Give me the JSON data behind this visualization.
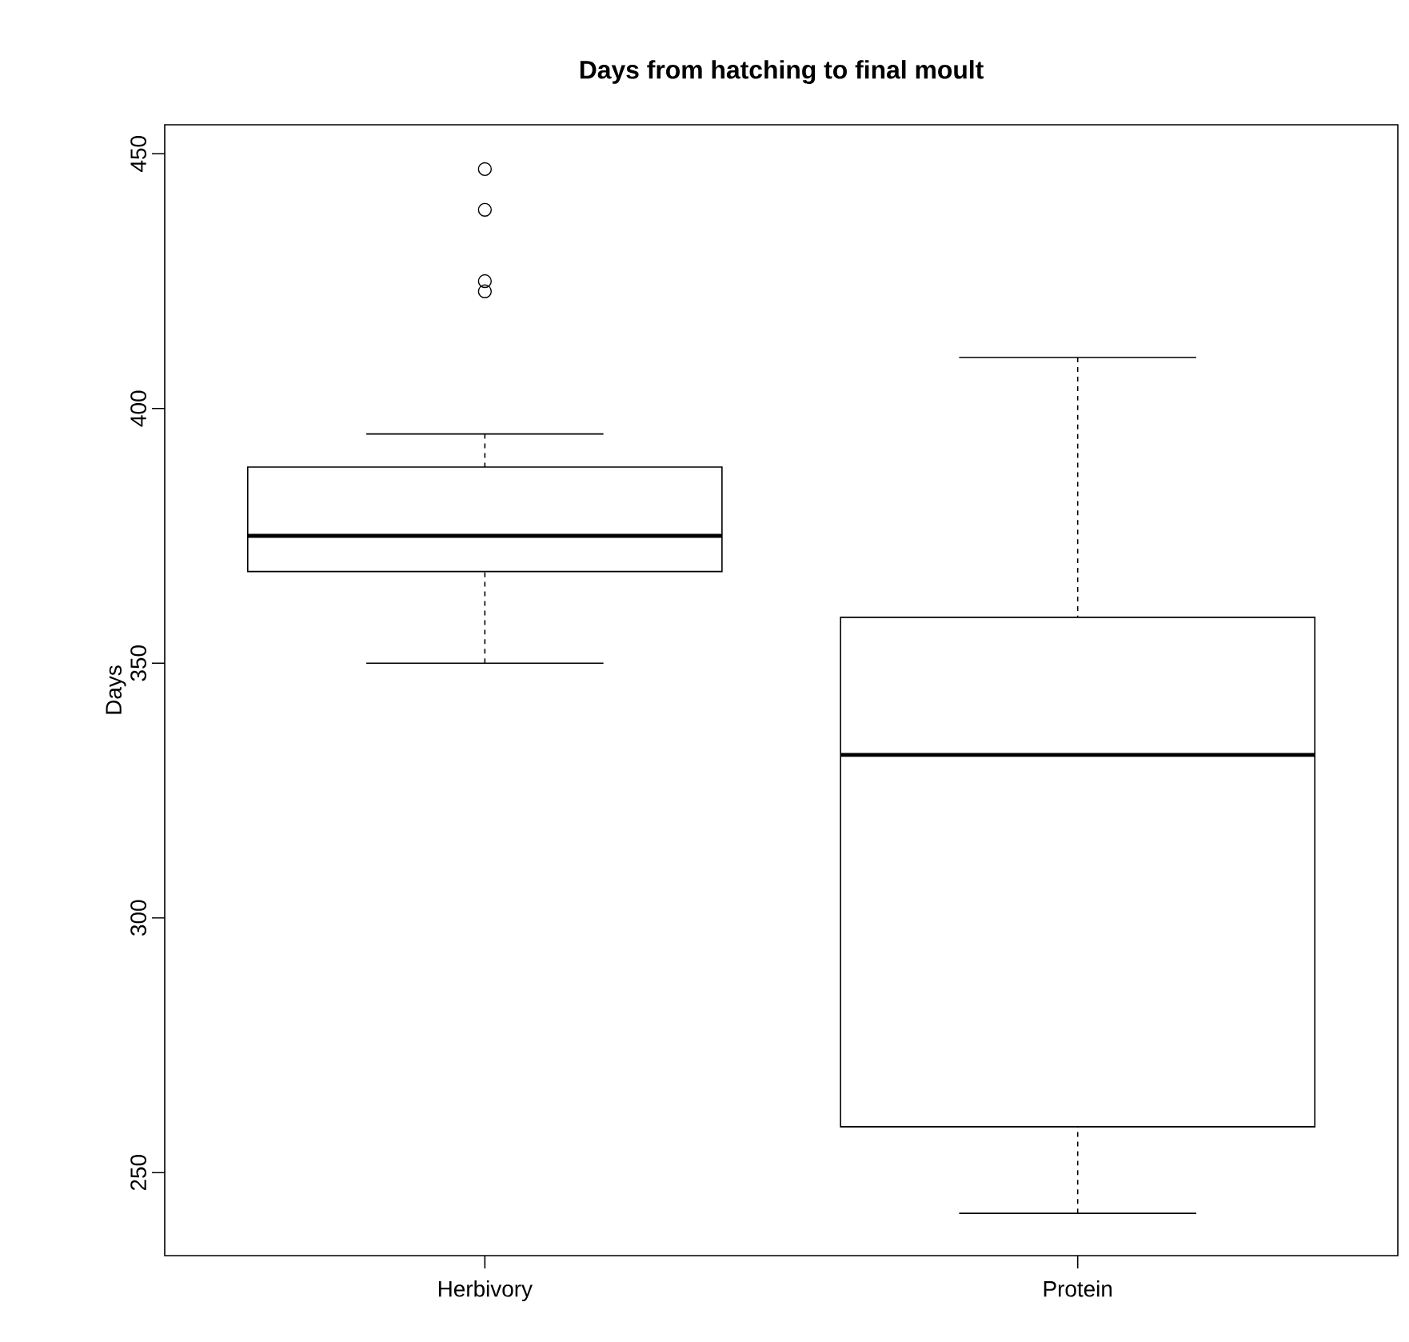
{
  "chart_data": {
    "type": "box",
    "title": "Days from hatching to final moult",
    "ylabel": "Days",
    "categories": [
      "Herbivory",
      "Protein"
    ],
    "boxes": [
      {
        "low": 350,
        "q1": 368,
        "median": 375,
        "q3": 388.5,
        "high": 395,
        "outliers": [
          447,
          439,
          425,
          423
        ]
      },
      {
        "low": 242,
        "q1": 259,
        "median": 332,
        "q3": 359,
        "high": 410
      }
    ],
    "ylim": [
      233.7,
      455.7
    ],
    "yticks": [
      250,
      300,
      350,
      400,
      450
    ]
  }
}
